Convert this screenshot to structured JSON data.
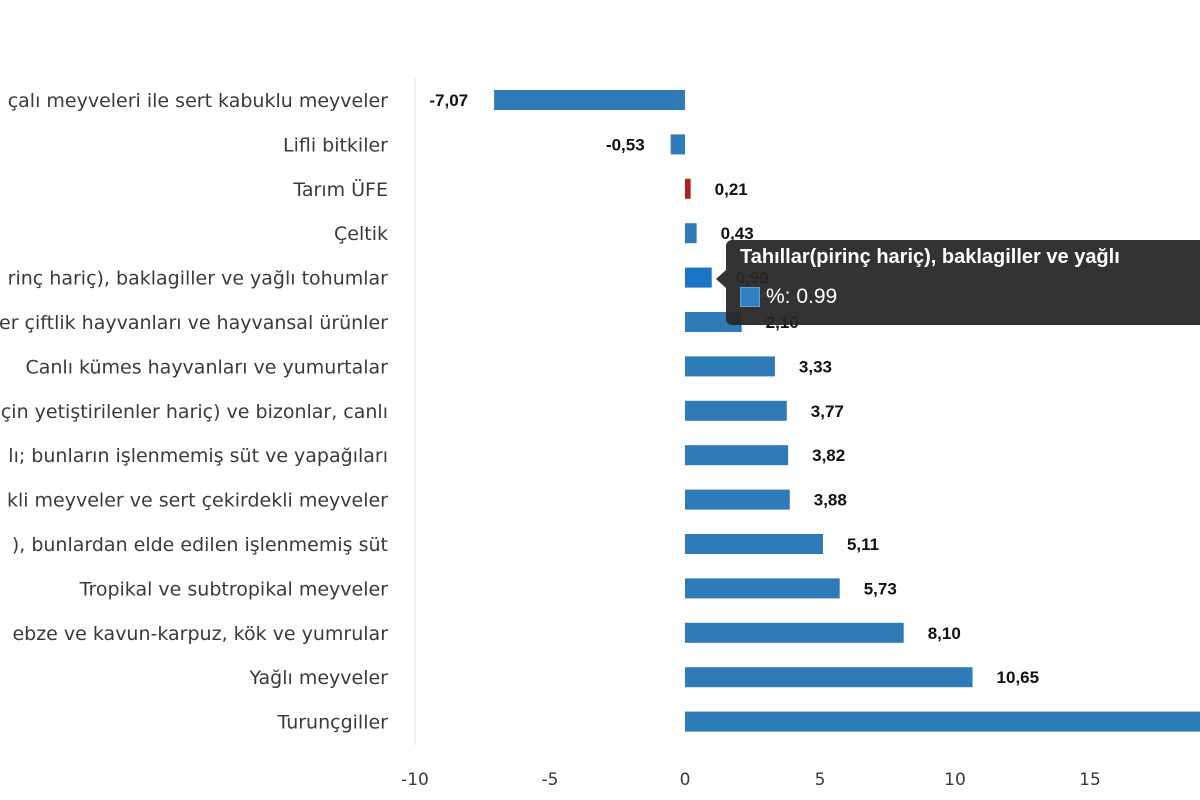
{
  "chart_data": {
    "type": "bar",
    "orientation": "horizontal",
    "categories": [
      "çalı meyveleri ile sert kabuklu meyveler",
      "Lifli bitkiler",
      "Tarım ÜFE",
      "Çeltik",
      "rinç hariç), baklagiller ve yağlı tohumlar",
      "er çiftlik hayvanları ve hayvansal ürünler",
      "Canlı kümes hayvanları ve yumurtalar",
      "çin yetiştirilenler hariç) ve bizonlar, canlı",
      "lı; bunların işlenmemiş süt ve yapağıları",
      "kli meyveler ve sert çekirdekli meyveler",
      "), bunlardan elde edilen işlenmemiş süt",
      "Tropikal ve subtropikal meyveler",
      "ebze ve kavun-karpuz, kök ve yumrular",
      "Yağlı meyveler",
      "Turunçgiller"
    ],
    "values": [
      -7.07,
      -0.53,
      0.21,
      0.43,
      0.99,
      2.1,
      3.33,
      3.77,
      3.82,
      3.88,
      5.11,
      5.73,
      8.1,
      10.65,
      20
    ],
    "value_labels": [
      "-7,07",
      "-0,53",
      "0,21",
      "0,43",
      "0,99",
      "2,10",
      "3,33",
      "3,77",
      "3,82",
      "3,88",
      "5,11",
      "5,73",
      "8,10",
      "10,65",
      ""
    ],
    "highlight_index": 2,
    "hover_index": 4,
    "xlim": [
      -10,
      20
    ],
    "xticks": [
      -10,
      -5,
      0,
      5,
      10,
      15
    ],
    "xtick_labels": [
      "-10",
      "-5",
      "0",
      "5",
      "10",
      "15"
    ],
    "grid": false,
    "colors": {
      "bar": "#2f7bb8",
      "highlight": "#b0201f",
      "hover": "#1a75c4",
      "axis": "#d8dde6"
    }
  },
  "tooltip": {
    "title": "Tahıllar(pirinç hariç), baklagiller ve yağlı",
    "value": "%: 0.99"
  }
}
